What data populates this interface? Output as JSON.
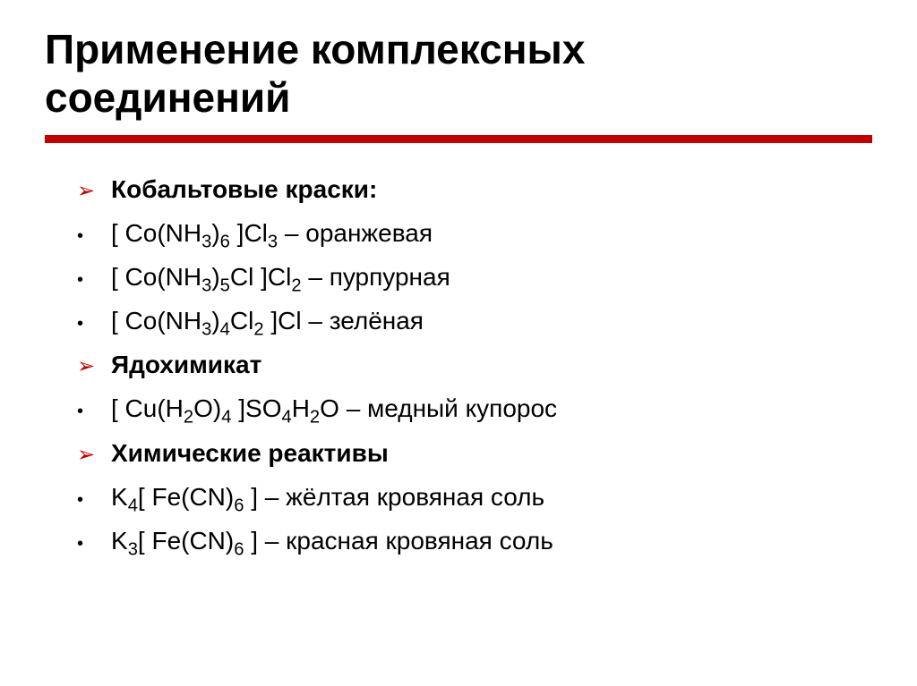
{
  "title_line1": "Применение комплексных",
  "title_line2": "соединений",
  "rule_color": "#c00000",
  "sections": {
    "s1_heading": "Кобальтовые краски:",
    "s2_heading": "Ядохимикат",
    "s3_heading": "Химические реактивы"
  },
  "items": {
    "i1_desc": " – оранжевая",
    "i2_desc": " – пурпурная",
    "i3_desc": " – зелёная",
    "i4_desc": " – медный купорос",
    "i5_desc": " – жёлтая кровяная соль",
    "i6_desc": " – красная кровяная соль"
  },
  "formulas": {
    "f1_p1": "[ Co(NH",
    "f1_s1": "3",
    "f1_p2": ")",
    "f1_s2": "6",
    "f1_p3": " ]Cl",
    "f1_s3": "3",
    "f2_p1": "[ Co(NH",
    "f2_s1": "3",
    "f2_p2": ")",
    "f2_s2": "5",
    "f2_p3": "Cl ]Cl",
    "f2_s3": "2",
    "f3_p1": "[ Co(NH",
    "f3_s1": "3",
    "f3_p2": ")",
    "f3_s2": "4",
    "f3_p3": "Cl",
    "f3_s3": "2",
    "f3_p4": " ]Cl",
    "f4_p1": "[ Cu(H",
    "f4_s1": "2",
    "f4_p2": "O)",
    "f4_s2": "4",
    "f4_p3": " ]SO",
    "f4_s3": "4",
    "f4_p4": "H",
    "f4_s4": "2",
    "f4_p5": "O",
    "f5_p1": "K",
    "f5_s1": "4",
    "f5_p2": "[ Fe(CN)",
    "f5_s2": "6",
    "f5_p3": " ]",
    "f6_p1": "K",
    "f6_s1": "3",
    "f6_p2": "[ Fe(CN)",
    "f6_s2": "6",
    "f6_p3": " ]"
  },
  "bullets": {
    "arrow": "➢",
    "dot": "•"
  },
  "fontsize": {
    "title": 46,
    "body": 28
  },
  "colors": {
    "background": "#ffffff",
    "text": "#000000",
    "accent": "#c00000"
  }
}
